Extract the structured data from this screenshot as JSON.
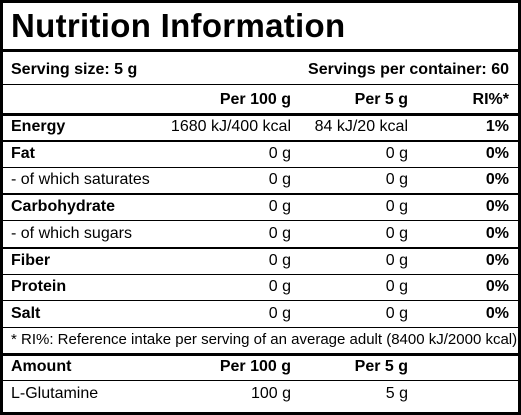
{
  "header": {
    "title": "Nutrition Information"
  },
  "serving": {
    "size": "Serving size: 5 g",
    "per_container": "Servings per container: 60"
  },
  "table": {
    "columns": [
      "Per 100 g",
      "Per 5 g",
      "RI%*"
    ],
    "rows": [
      [
        "Energy",
        "1680 kJ/400 kcal",
        "84 kJ/20 kcal",
        "1%"
      ],
      [
        "Fat",
        "0 g",
        "0 g",
        "0%"
      ],
      [
        "- of which saturates",
        "0 g",
        "0 g",
        "0%"
      ],
      [
        "Carbohydrate",
        "0 g",
        "0 g",
        "0%"
      ],
      [
        "- of which sugars",
        "0 g",
        "0 g",
        "0%"
      ],
      [
        "Fiber",
        "0 g",
        "0 g",
        "0%"
      ],
      [
        "Protein",
        "0 g",
        "0 g",
        "0%"
      ],
      [
        "Salt",
        "0 g",
        "0 g",
        "0%"
      ]
    ]
  },
  "footnote": "* RI%: Reference intake per serving of an average adult (8400 kJ/2000 kcal).",
  "amount": {
    "columns": [
      "Amount",
      "Per 100 g",
      "Per 5 g"
    ],
    "rows": [
      [
        "L-Glutamine",
        "100 g",
        "5 g"
      ]
    ]
  }
}
